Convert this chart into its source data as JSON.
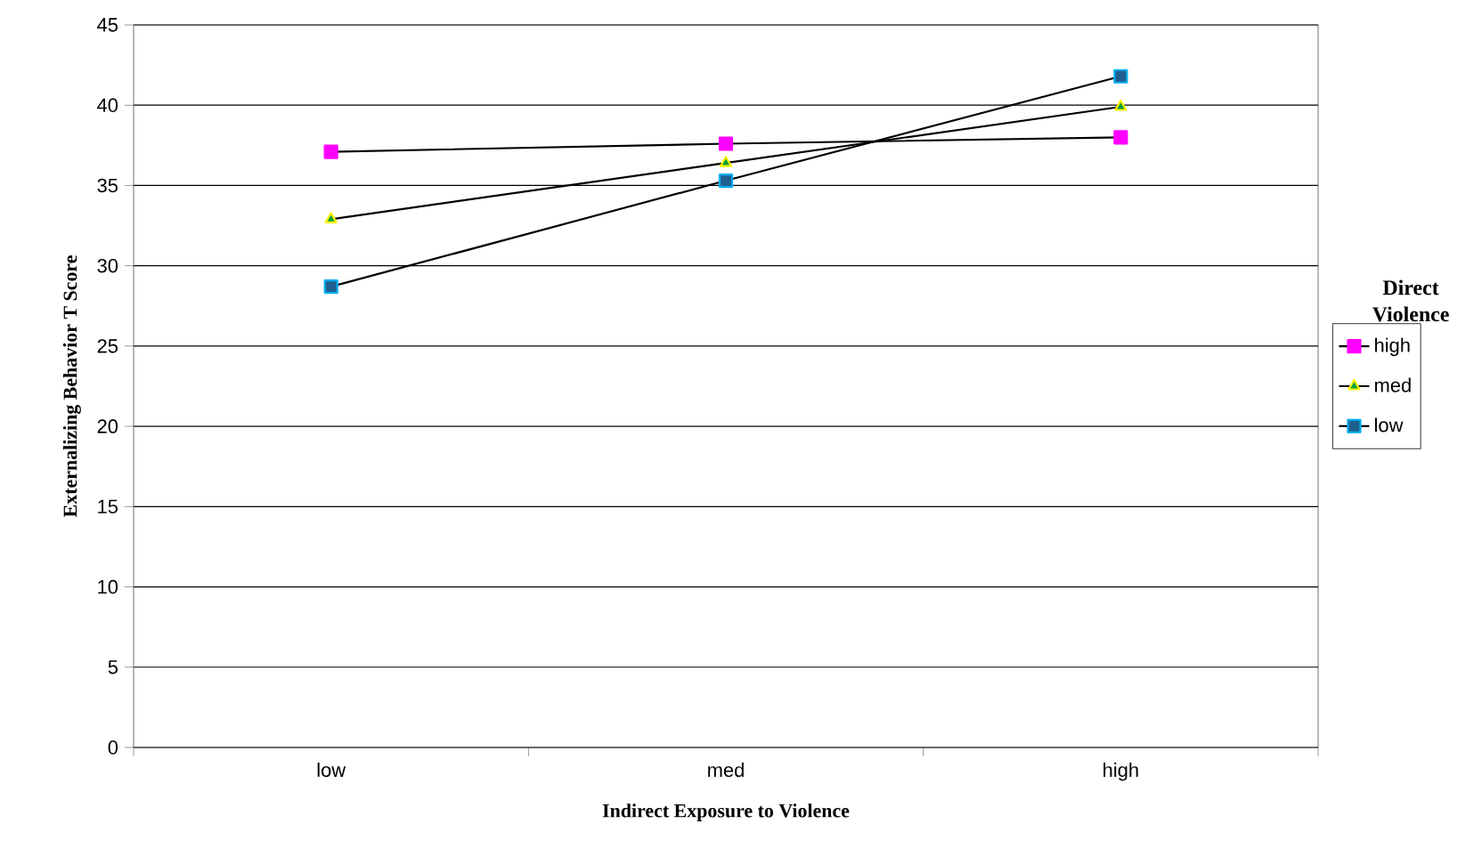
{
  "chart_data": {
    "type": "line",
    "xlabel": "Indirect Exposure to Violence",
    "ylabel": "Externalizing Behavior T Score",
    "legend_title": "Direct Violence",
    "categories": [
      "low",
      "med",
      "high"
    ],
    "series": [
      {
        "name": "high",
        "color": "#ff00ff",
        "marker": "square",
        "values": [
          37.1,
          37.6,
          38.0
        ]
      },
      {
        "name": "med",
        "color": "#00a040",
        "marker": "triangle",
        "values": [
          32.9,
          36.4,
          39.9
        ]
      },
      {
        "name": "low",
        "color": "#1f5f8f",
        "marker": "square",
        "values": [
          28.7,
          35.3,
          41.8
        ]
      }
    ],
    "ylim": [
      0,
      45
    ],
    "yticks": [
      0,
      5,
      10,
      15,
      20,
      25,
      30,
      35,
      40,
      45
    ],
    "grid": "y",
    "legend": "right",
    "line_style": "solid"
  }
}
